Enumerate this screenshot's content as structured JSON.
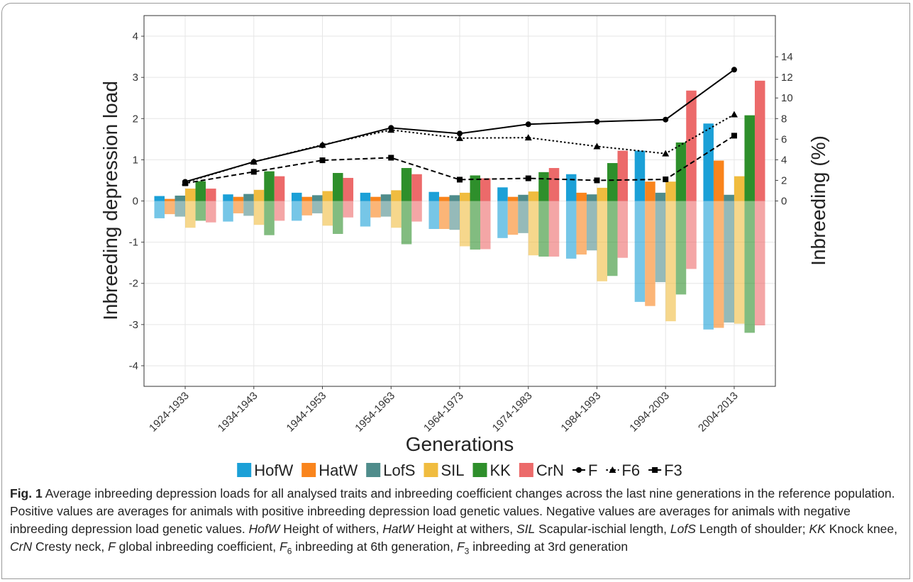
{
  "chart_data": {
    "type": "bar",
    "y_label": "Inbreeding depression load",
    "y2_label": "Inbreeding (%)",
    "x_label": "Generations",
    "categories": [
      "1924-1933",
      "1934-1943",
      "1944-1953",
      "1954-1963",
      "1964-1973",
      "1974-1983",
      "1984-1993",
      "1994-2003",
      "2004-2013"
    ],
    "ylim": [
      -4.5,
      4.5
    ],
    "yticks": [
      -4,
      -3,
      -2,
      -1,
      0,
      1,
      2,
      3,
      4
    ],
    "y2lim": [
      -18,
      18
    ],
    "y2ticks": [
      0,
      2,
      4,
      6,
      8,
      10,
      12,
      14
    ],
    "grid": true,
    "legend": "bottom",
    "series": [
      {
        "name": "HofW",
        "type": "bar",
        "color": "#1ba0d7",
        "values": [
          0.12,
          0.16,
          0.2,
          0.2,
          0.22,
          0.33,
          0.65,
          1.22,
          1.88
        ],
        "negative_values": [
          -0.42,
          -0.5,
          -0.48,
          -0.62,
          -0.68,
          -0.9,
          -1.4,
          -2.45,
          -3.12
        ]
      },
      {
        "name": "HatW",
        "type": "bar",
        "color": "#f9841c",
        "values": [
          0.05,
          0.1,
          0.1,
          0.1,
          0.1,
          0.1,
          0.2,
          0.47,
          0.98
        ],
        "negative_values": [
          -0.32,
          -0.3,
          -0.35,
          -0.4,
          -0.68,
          -0.82,
          -1.3,
          -2.55,
          -3.08
        ]
      },
      {
        "name": "LofS",
        "type": "bar",
        "color": "#4f8c8b",
        "values": [
          0.13,
          0.17,
          0.14,
          0.16,
          0.14,
          0.15,
          0.16,
          0.2,
          0.15
        ],
        "negative_values": [
          -0.38,
          -0.36,
          -0.3,
          -0.38,
          -0.7,
          -0.78,
          -1.2,
          -1.97,
          -2.95
        ]
      },
      {
        "name": "SIL",
        "type": "bar",
        "color": "#f0bc3f",
        "values": [
          0.3,
          0.27,
          0.24,
          0.26,
          0.2,
          0.23,
          0.32,
          0.47,
          0.6
        ],
        "negative_values": [
          -0.65,
          -0.58,
          -0.6,
          -0.65,
          -1.1,
          -1.32,
          -1.95,
          -2.92,
          -2.98
        ]
      },
      {
        "name": "KK",
        "type": "bar",
        "color": "#2e8f2b",
        "values": [
          0.48,
          0.72,
          0.68,
          0.8,
          0.62,
          0.7,
          0.92,
          1.42,
          2.08
        ],
        "negative_values": [
          -0.48,
          -0.83,
          -0.8,
          -1.05,
          -1.18,
          -1.35,
          -1.82,
          -2.27,
          -3.2
        ]
      },
      {
        "name": "CrN",
        "type": "bar",
        "color": "#ec6a6a",
        "values": [
          0.3,
          0.6,
          0.56,
          0.65,
          0.55,
          0.8,
          1.22,
          2.68,
          2.92
        ],
        "negative_values": [
          -0.52,
          -0.48,
          -0.4,
          -0.5,
          -1.17,
          -1.35,
          -1.38,
          -1.65,
          -3.02
        ]
      },
      {
        "name": "F",
        "type": "line",
        "axis": "y2",
        "color": "#000000",
        "marker": "circle",
        "dash": "solid",
        "values": [
          1.86,
          3.8,
          5.4,
          7.1,
          6.55,
          7.45,
          7.7,
          7.9,
          12.75
        ]
      },
      {
        "name": "F6",
        "type": "line",
        "axis": "y2",
        "color": "#000000",
        "marker": "triangle",
        "dash": "dotted",
        "values": [
          1.8,
          3.8,
          5.45,
          6.9,
          6.1,
          6.15,
          5.3,
          4.6,
          8.4
        ]
      },
      {
        "name": "F3",
        "type": "line",
        "axis": "y2",
        "color": "#000000",
        "marker": "square",
        "dash": "dashed",
        "values": [
          1.72,
          2.83,
          3.95,
          4.2,
          2.07,
          2.2,
          2.0,
          2.1,
          6.34
        ]
      }
    ]
  },
  "caption": {
    "label": "Fig. 1",
    "segments": [
      {
        "text": " Average inbreeding depression loads for all analysed traits and inbreeding coefficient changes across the last nine generations in the reference population. Positive values are averages for animals with positive inbreeding depression load genetic values. Negative values are averages for animals with negative inbreeding depression load genetic values. "
      },
      {
        "text": "HofW",
        "italic": true
      },
      {
        "text": " Height of withers, "
      },
      {
        "text": "HatW",
        "italic": true
      },
      {
        "text": " Height at withers, "
      },
      {
        "text": "SIL",
        "italic": true
      },
      {
        "text": " Scapular-ischial length, "
      },
      {
        "text": "LofS",
        "italic": true
      },
      {
        "text": " Length of shoulder; "
      },
      {
        "text": "KK",
        "italic": true
      },
      {
        "text": " Knock knee, "
      },
      {
        "text": "CrN",
        "italic": true
      },
      {
        "text": " Cresty neck, "
      },
      {
        "text": "F",
        "italic": true
      },
      {
        "text": " global inbreeding coefficient, "
      },
      {
        "text": "F",
        "italic": true
      },
      {
        "text": "6",
        "sub": true
      },
      {
        "text": " inbreeding at 6th generation, "
      },
      {
        "text": "F",
        "italic": true
      },
      {
        "text": "3",
        "sub": true
      },
      {
        "text": " inbreeding at 3rd generation"
      }
    ]
  }
}
